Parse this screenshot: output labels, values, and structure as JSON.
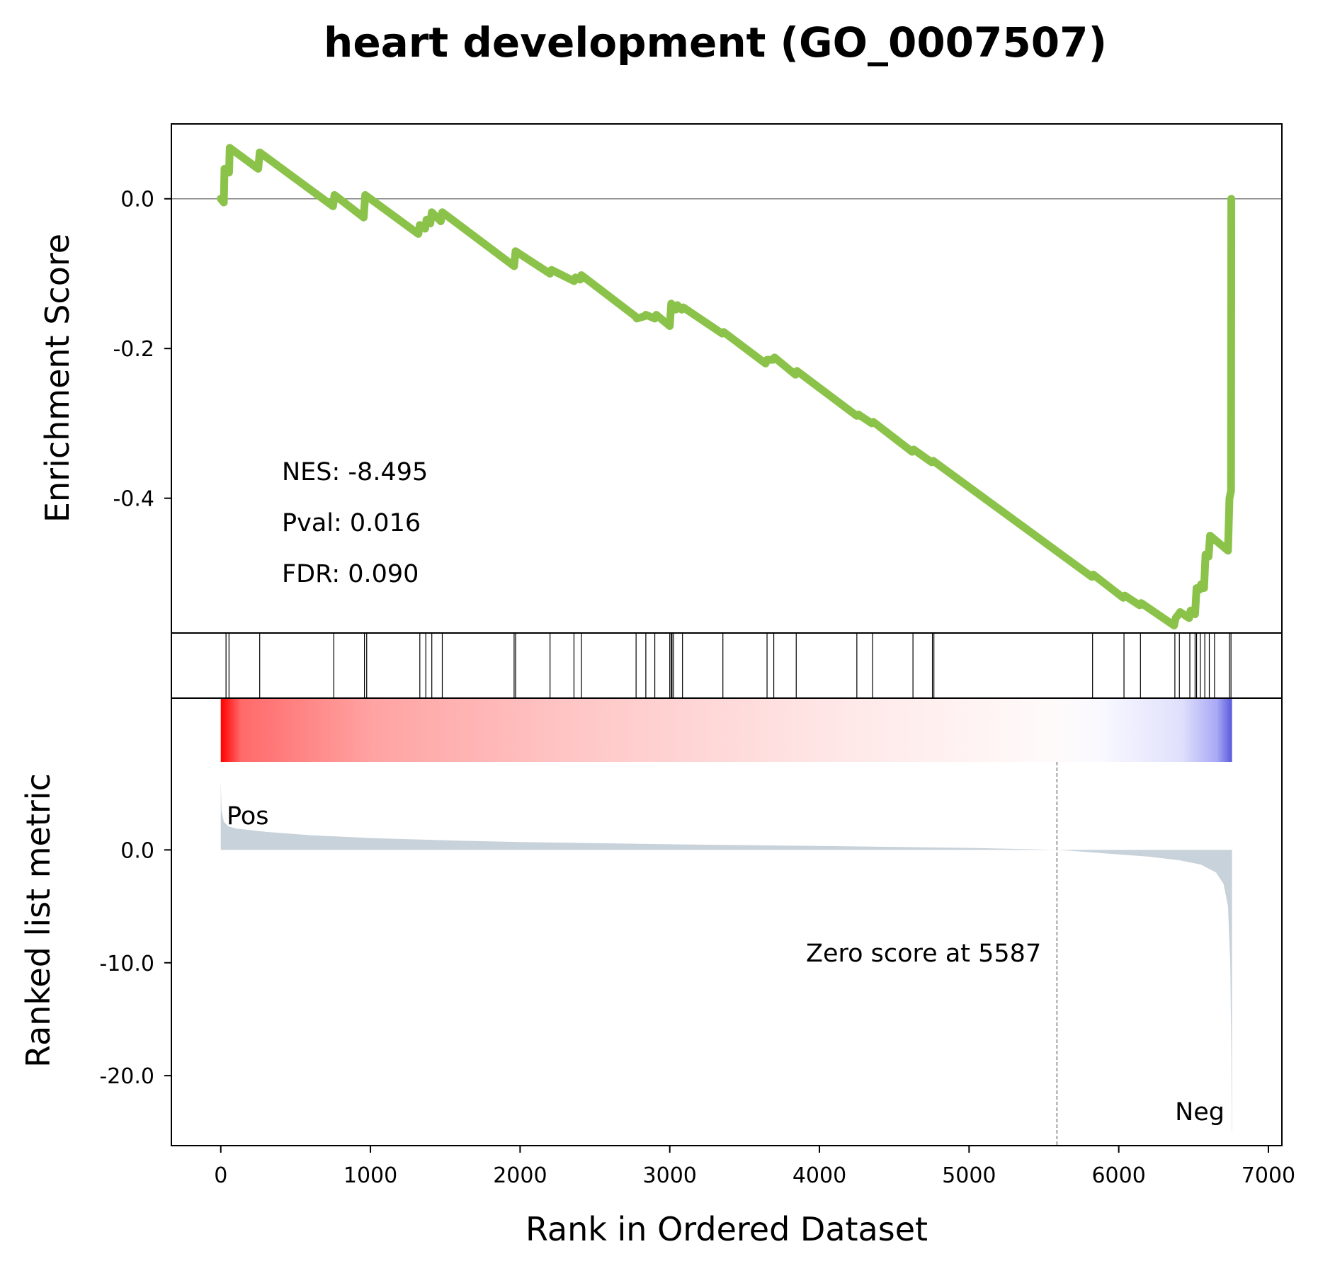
{
  "chart_data": {
    "type": "line",
    "title": "heart development (GO_0007507)",
    "xlabel": "Rank in Ordered Dataset",
    "es_panel": {
      "ylabel": "Enrichment Score",
      "ylim": [
        -0.58,
        0.1
      ],
      "yticks": [
        0.0,
        -0.2,
        -0.4
      ],
      "ytick_labels": [
        "0.0",
        "-0.2",
        "-0.4"
      ],
      "line_color": "#8bc34a",
      "stats": {
        "nes": "NES: -8.495",
        "pval": "Pval: 0.016",
        "fdr": "FDR: 0.090"
      },
      "points": [
        [
          0,
          0.0
        ],
        [
          20,
          -0.005
        ],
        [
          25,
          0.04
        ],
        [
          55,
          0.035
        ],
        [
          60,
          0.068
        ],
        [
          250,
          0.04
        ],
        [
          260,
          0.062
        ],
        [
          750,
          -0.01
        ],
        [
          760,
          0.005
        ],
        [
          955,
          -0.025
        ],
        [
          965,
          0.005
        ],
        [
          1320,
          -0.047
        ],
        [
          1330,
          -0.035
        ],
        [
          1365,
          -0.04
        ],
        [
          1375,
          -0.028
        ],
        [
          1400,
          -0.033
        ],
        [
          1410,
          -0.018
        ],
        [
          1470,
          -0.03
        ],
        [
          1480,
          -0.018
        ],
        [
          1960,
          -0.09
        ],
        [
          1970,
          -0.07
        ],
        [
          2200,
          -0.1
        ],
        [
          2210,
          -0.095
        ],
        [
          2360,
          -0.11
        ],
        [
          2370,
          -0.105
        ],
        [
          2400,
          -0.108
        ],
        [
          2410,
          -0.102
        ],
        [
          2770,
          -0.157
        ],
        [
          2780,
          -0.16
        ],
        [
          2830,
          -0.157
        ],
        [
          2840,
          -0.155
        ],
        [
          2900,
          -0.16
        ],
        [
          2910,
          -0.155
        ],
        [
          3000,
          -0.17
        ],
        [
          3010,
          -0.14
        ],
        [
          3040,
          -0.148
        ],
        [
          3050,
          -0.142
        ],
        [
          3080,
          -0.148
        ],
        [
          3090,
          -0.145
        ],
        [
          3350,
          -0.18
        ],
        [
          3360,
          -0.178
        ],
        [
          3640,
          -0.22
        ],
        [
          3650,
          -0.215
        ],
        [
          3690,
          -0.215
        ],
        [
          3700,
          -0.212
        ],
        [
          3840,
          -0.235
        ],
        [
          3850,
          -0.23
        ],
        [
          4250,
          -0.29
        ],
        [
          4260,
          -0.288
        ],
        [
          4350,
          -0.3
        ],
        [
          4360,
          -0.298
        ],
        [
          4620,
          -0.338
        ],
        [
          4630,
          -0.335
        ],
        [
          4750,
          -0.352
        ],
        [
          4760,
          -0.35
        ],
        [
          5820,
          -0.505
        ],
        [
          5830,
          -0.502
        ],
        [
          6030,
          -0.533
        ],
        [
          6040,
          -0.53
        ],
        [
          6140,
          -0.543
        ],
        [
          6150,
          -0.54
        ],
        [
          6370,
          -0.57
        ],
        [
          6380,
          -0.56
        ],
        [
          6400,
          -0.555
        ],
        [
          6410,
          -0.552
        ],
        [
          6470,
          -0.56
        ],
        [
          6480,
          -0.55
        ],
        [
          6510,
          -0.555
        ],
        [
          6520,
          -0.52
        ],
        [
          6540,
          -0.522
        ],
        [
          6550,
          -0.515
        ],
        [
          6570,
          -0.52
        ],
        [
          6580,
          -0.475
        ],
        [
          6600,
          -0.478
        ],
        [
          6610,
          -0.45
        ],
        [
          6640,
          -0.455
        ],
        [
          6730,
          -0.47
        ],
        [
          6740,
          -0.4
        ],
        [
          6750,
          -0.39
        ],
        [
          6752,
          0.0
        ]
      ]
    },
    "hits_panel": {
      "hits": [
        35,
        55,
        260,
        755,
        960,
        975,
        1330,
        1370,
        1410,
        1480,
        1960,
        1970,
        2200,
        2360,
        2410,
        2775,
        2840,
        2900,
        3000,
        3010,
        3015,
        3025,
        3085,
        3355,
        3650,
        3695,
        3845,
        4250,
        4355,
        4625,
        4755,
        4765,
        5825,
        6035,
        6145,
        6375,
        6405,
        6475,
        6510,
        6520,
        6545,
        6575,
        6605,
        6640,
        6740,
        6750
      ]
    },
    "metric_panel": {
      "ylabel": "Ranked list metric",
      "ylim": [
        -26.2,
        7.8
      ],
      "yticks": [
        0.0,
        -10.0,
        -20.0
      ],
      "ytick_labels": [
        "0.0",
        "-10.0",
        "-20.0"
      ],
      "fill_color": "#c8d2da",
      "pos_label": "Pos",
      "neg_label": "Neg",
      "pos_color": "#ff0000",
      "neg_color": "#0000ff",
      "zero_score_text": "Zero score at 5587",
      "zero_score_rank": 5587,
      "metric_points": [
        [
          0,
          6.2
        ],
        [
          5,
          3.5
        ],
        [
          20,
          2.5
        ],
        [
          50,
          2.1
        ],
        [
          100,
          1.9
        ],
        [
          300,
          1.6
        ],
        [
          600,
          1.3
        ],
        [
          1000,
          1.05
        ],
        [
          1500,
          0.85
        ],
        [
          2000,
          0.7
        ],
        [
          3000,
          0.5
        ],
        [
          4000,
          0.35
        ],
        [
          5000,
          0.18
        ],
        [
          5587,
          0.0
        ],
        [
          5800,
          -0.2
        ],
        [
          6000,
          -0.4
        ],
        [
          6200,
          -0.6
        ],
        [
          6400,
          -0.9
        ],
        [
          6550,
          -1.3
        ],
        [
          6650,
          -2.0
        ],
        [
          6700,
          -3.0
        ],
        [
          6730,
          -5.0
        ],
        [
          6745,
          -10.0
        ],
        [
          6752,
          -18.0
        ],
        [
          6755,
          -25.0
        ],
        [
          6757,
          -25.0
        ]
      ],
      "gradient_stops": [
        {
          "offset": 0.0,
          "color": "#ff0000"
        },
        {
          "offset": 0.02,
          "color": "#ff6a6a"
        },
        {
          "offset": 0.15,
          "color": "#ffa3a3"
        },
        {
          "offset": 0.35,
          "color": "#ffc6c6"
        },
        {
          "offset": 0.6,
          "color": "#ffe6e6"
        },
        {
          "offset": 0.82,
          "color": "#fffafa"
        },
        {
          "offset": 0.87,
          "color": "#f9f9ff"
        },
        {
          "offset": 0.95,
          "color": "#e0e0fc"
        },
        {
          "offset": 0.985,
          "color": "#a9a9f5"
        },
        {
          "offset": 1.0,
          "color": "#5a5adc"
        }
      ]
    },
    "x_axis": {
      "xlim": [
        -330,
        7090
      ],
      "xticks": [
        0,
        1000,
        2000,
        3000,
        4000,
        5000,
        6000,
        7000
      ],
      "xtick_labels": [
        "0",
        "1000",
        "2000",
        "3000",
        "4000",
        "5000",
        "6000",
        "7000"
      ]
    }
  }
}
